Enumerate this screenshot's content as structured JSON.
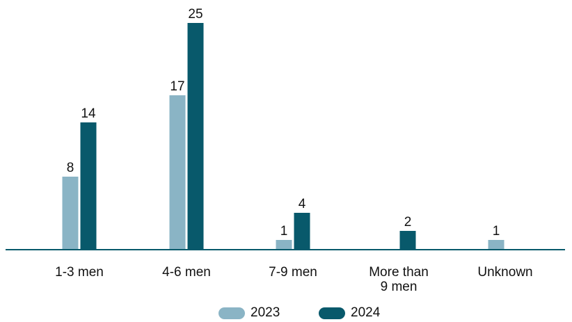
{
  "chart_data": {
    "type": "bar",
    "categories": [
      "1-3 men",
      "4-6 men",
      "7-9 men",
      "More than\n9 men",
      "Unknown"
    ],
    "series": [
      {
        "name": "2023",
        "values": [
          8,
          17,
          1,
          null,
          1
        ],
        "color": "#8ab4c5"
      },
      {
        "name": "2024",
        "values": [
          14,
          25,
          4,
          2,
          null
        ],
        "color": "#08596b"
      }
    ],
    "ylim": [
      0,
      25
    ],
    "grid": false,
    "legend_position": "bottom-center",
    "baseline_color": "#08596b",
    "data_labels": true
  },
  "legend": {
    "items": [
      {
        "label": "2023",
        "color": "#8ab4c5"
      },
      {
        "label": "2024",
        "color": "#08596b"
      }
    ]
  }
}
